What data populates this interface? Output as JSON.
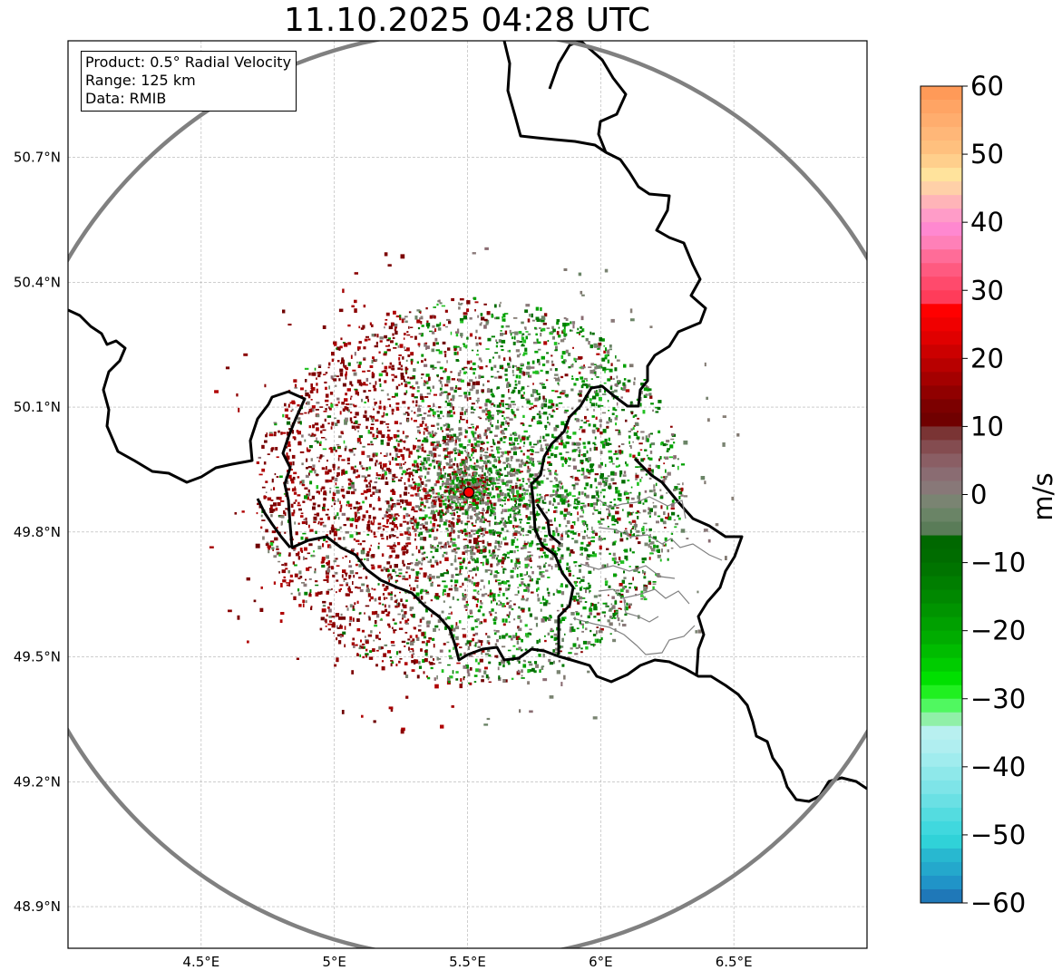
{
  "title": "11.10.2025 04:28 UTC",
  "info": {
    "product": "Product: 0.5° Radial Velocity",
    "range": "Range: 125 km",
    "data": "Data: RMIB"
  },
  "map": {
    "lon_range": [
      4.0,
      7.0
    ],
    "lat_range": [
      48.8,
      50.98
    ],
    "lon_ticks": [
      {
        "value": 4.5,
        "label": "4.5°E"
      },
      {
        "value": 5.0,
        "label": "5°E"
      },
      {
        "value": 5.5,
        "label": "5.5°E"
      },
      {
        "value": 6.0,
        "label": "6°E"
      },
      {
        "value": 6.5,
        "label": "6.5°E"
      }
    ],
    "lat_ticks": [
      {
        "value": 50.7,
        "label": "50.7°N"
      },
      {
        "value": 50.4,
        "label": "50.4°N"
      },
      {
        "value": 50.1,
        "label": "50.1°N"
      },
      {
        "value": 49.8,
        "label": "49.8°N"
      },
      {
        "value": 49.5,
        "label": "49.5°N"
      },
      {
        "value": 49.2,
        "label": "49.2°N"
      },
      {
        "value": 48.9,
        "label": "48.9°N"
      }
    ],
    "grid": true,
    "radar_site": {
      "lon": 5.505,
      "lat": 49.914,
      "color": "#ff0000"
    },
    "range_ring_color": "#808080",
    "border_color": "#000000"
  },
  "colorbar": {
    "unit": "m/s",
    "min": -60,
    "max": 60,
    "ticks": [
      60,
      50,
      40,
      30,
      20,
      10,
      0,
      -10,
      -20,
      -30,
      -40,
      -50,
      -60
    ],
    "tick_labels": [
      "60",
      "50",
      "40",
      "30",
      "20",
      "10",
      "0",
      "−10",
      "−20",
      "−30",
      "−40",
      "−50",
      "−60"
    ],
    "bands": [
      {
        "from": 58,
        "to": 60,
        "color": "#ff9a58"
      },
      {
        "from": 56,
        "to": 58,
        "color": "#ffa464"
      },
      {
        "from": 54,
        "to": 56,
        "color": "#ffad6e"
      },
      {
        "from": 52,
        "to": 54,
        "color": "#ffb778"
      },
      {
        "from": 50,
        "to": 52,
        "color": "#ffc07e"
      },
      {
        "from": 48,
        "to": 50,
        "color": "#ffcf8c"
      },
      {
        "from": 46,
        "to": 48,
        "color": "#ffe39c"
      },
      {
        "from": 44,
        "to": 46,
        "color": "#ffd0a8"
      },
      {
        "from": 42,
        "to": 44,
        "color": "#ffb4b8"
      },
      {
        "from": 40,
        "to": 42,
        "color": "#ff9cc8"
      },
      {
        "from": 38,
        "to": 40,
        "color": "#ff88d0"
      },
      {
        "from": 36,
        "to": 38,
        "color": "#ff80b8"
      },
      {
        "from": 34,
        "to": 36,
        "color": "#ff6c98"
      },
      {
        "from": 32,
        "to": 34,
        "color": "#ff5a80"
      },
      {
        "from": 30,
        "to": 32,
        "color": "#ff4a6c"
      },
      {
        "from": 28,
        "to": 30,
        "color": "#ff3c5a"
      },
      {
        "from": 26,
        "to": 28,
        "color": "#ff0000"
      },
      {
        "from": 24,
        "to": 26,
        "color": "#f00000"
      },
      {
        "from": 22,
        "to": 24,
        "color": "#e00000"
      },
      {
        "from": 20,
        "to": 22,
        "color": "#cc0000"
      },
      {
        "from": 18,
        "to": 20,
        "color": "#b80000"
      },
      {
        "from": 16,
        "to": 18,
        "color": "#a40000"
      },
      {
        "from": 14,
        "to": 16,
        "color": "#900000"
      },
      {
        "from": 12,
        "to": 14,
        "color": "#7c0000"
      },
      {
        "from": 10,
        "to": 12,
        "color": "#700000"
      },
      {
        "from": 8,
        "to": 10,
        "color": "#7a3434"
      },
      {
        "from": 6,
        "to": 8,
        "color": "#844c50"
      },
      {
        "from": 4,
        "to": 6,
        "color": "#8a5e64"
      },
      {
        "from": 2,
        "to": 4,
        "color": "#8a6c72"
      },
      {
        "from": 0,
        "to": 2,
        "color": "#887878"
      },
      {
        "from": -2,
        "to": 0,
        "color": "#7a8472"
      },
      {
        "from": -4,
        "to": -2,
        "color": "#6a8466"
      },
      {
        "from": -6,
        "to": -4,
        "color": "#5a7c58"
      },
      {
        "from": -8,
        "to": -6,
        "color": "#006800"
      },
      {
        "from": -10,
        "to": -8,
        "color": "#006c00"
      },
      {
        "from": -12,
        "to": -10,
        "color": "#007400"
      },
      {
        "from": -14,
        "to": -12,
        "color": "#007e00"
      },
      {
        "from": -16,
        "to": -14,
        "color": "#008800"
      },
      {
        "from": -18,
        "to": -16,
        "color": "#009400"
      },
      {
        "from": -20,
        "to": -18,
        "color": "#00a000"
      },
      {
        "from": -22,
        "to": -20,
        "color": "#00ac00"
      },
      {
        "from": -24,
        "to": -22,
        "color": "#00bc00"
      },
      {
        "from": -26,
        "to": -24,
        "color": "#00cc00"
      },
      {
        "from": -28,
        "to": -26,
        "color": "#00e000"
      },
      {
        "from": -30,
        "to": -28,
        "color": "#20f020"
      },
      {
        "from": -32,
        "to": -30,
        "color": "#50f860"
      },
      {
        "from": -34,
        "to": -32,
        "color": "#90f0a8"
      },
      {
        "from": -36,
        "to": -34,
        "color": "#b8f0f0"
      },
      {
        "from": -38,
        "to": -36,
        "color": "#b0eef0"
      },
      {
        "from": -40,
        "to": -38,
        "color": "#a0ecee"
      },
      {
        "from": -42,
        "to": -40,
        "color": "#8ee8ea"
      },
      {
        "from": -44,
        "to": -42,
        "color": "#7ee4e8"
      },
      {
        "from": -46,
        "to": -44,
        "color": "#6ae0e4"
      },
      {
        "from": -48,
        "to": -46,
        "color": "#54dce0"
      },
      {
        "from": -50,
        "to": -48,
        "color": "#40d8de"
      },
      {
        "from": -52,
        "to": -50,
        "color": "#30d2d8"
      },
      {
        "from": -54,
        "to": -52,
        "color": "#28b8d0"
      },
      {
        "from": -56,
        "to": -54,
        "color": "#24a8cc"
      },
      {
        "from": -58,
        "to": -56,
        "color": "#2094c8"
      },
      {
        "from": -60,
        "to": -58,
        "color": "#1f78b8"
      }
    ]
  }
}
